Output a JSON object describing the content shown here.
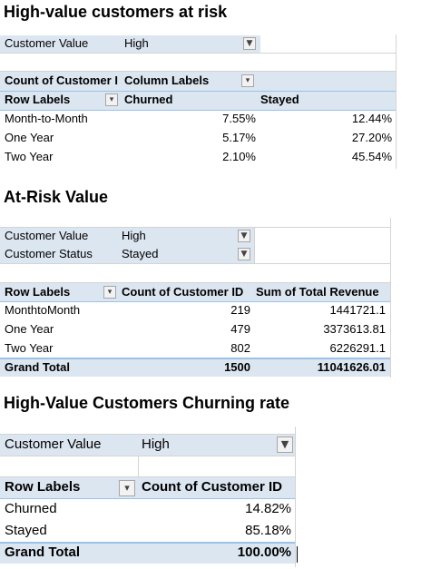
{
  "pivot1": {
    "title": "High-value customers at risk",
    "filter_label": "Customer Value",
    "filter_value": "High",
    "values_header": "Count of Customer I",
    "column_labels": "Column Labels",
    "row_labels": "Row Labels",
    "col_churned": "Churned",
    "col_stayed": "Stayed",
    "rows": [
      {
        "label": "Month-to-Month",
        "churned": "7.55%",
        "stayed": "12.44%"
      },
      {
        "label": "One Year",
        "churned": "5.17%",
        "stayed": "27.20%"
      },
      {
        "label": "Two Year",
        "churned": "2.10%",
        "stayed": "45.54%"
      }
    ]
  },
  "pivot2": {
    "title": "At-Risk Value",
    "filter1_label": "Customer Value",
    "filter1_value": "High",
    "filter2_label": "Customer Status",
    "filter2_value": "Stayed",
    "row_labels": "Row Labels",
    "col_count": "Count of Customer ID",
    "col_revenue": "Sum of Total Revenue",
    "rows": [
      {
        "label": "MonthtoMonth",
        "count": "219",
        "revenue": "1441721.1"
      },
      {
        "label": "One Year",
        "count": "479",
        "revenue": "3373613.81"
      },
      {
        "label": "Two Year",
        "count": "802",
        "revenue": "6226291.1"
      }
    ],
    "total": {
      "label": "Grand Total",
      "count": "1500",
      "revenue": "11041626.01"
    }
  },
  "pivot3": {
    "title": "High-Value Customers Churning rate",
    "filter_label": "Customer Value",
    "filter_value": "High",
    "row_labels": "Row Labels",
    "col_count": "Count of Customer ID",
    "rows": [
      {
        "label": "Churned",
        "value": "14.82%"
      },
      {
        "label": "Stayed",
        "value": "85.18%"
      }
    ],
    "total": {
      "label": "Grand Total",
      "value": "100.00%"
    }
  },
  "icons": {
    "filter_active": "filter-funnel-icon",
    "dropdown": "dropdown-arrow-icon"
  },
  "colors": {
    "header_band": "#dce6f1",
    "border_blue": "#9bc2e6"
  }
}
